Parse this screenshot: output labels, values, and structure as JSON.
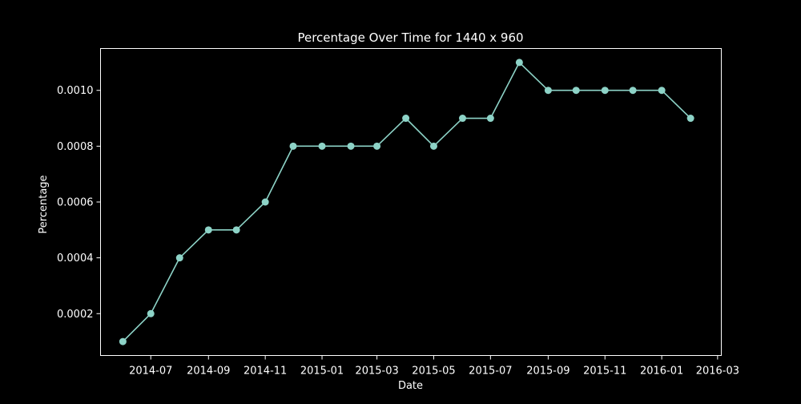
{
  "chart_data": {
    "type": "line",
    "title": "Percentage Over Time for 1440 x 960",
    "xlabel": "Date",
    "ylabel": "Percentage",
    "x_tick_labels": [
      "2014-07",
      "2014-09",
      "2014-11",
      "2015-01",
      "2015-03",
      "2015-05",
      "2015-07",
      "2015-09",
      "2015-11",
      "2016-01",
      "2016-03"
    ],
    "y_tick_labels": [
      "0.0002",
      "0.0004",
      "0.0006",
      "0.0008",
      "0.0010"
    ],
    "y_ticks": [
      0.0002,
      0.0004,
      0.0006,
      0.0008,
      0.001
    ],
    "x": [
      "2014-06-01",
      "2014-07-01",
      "2014-08-01",
      "2014-09-01",
      "2014-10-01",
      "2014-11-01",
      "2014-12-01",
      "2015-01-01",
      "2015-02-01",
      "2015-03-01",
      "2015-04-01",
      "2015-05-01",
      "2015-06-01",
      "2015-07-01",
      "2015-08-01",
      "2015-09-01",
      "2015-10-01",
      "2015-11-01",
      "2015-12-01",
      "2016-01-01",
      "2016-02-01"
    ],
    "values": [
      0.0001,
      0.0002,
      0.0004,
      0.0005,
      0.0005,
      0.0006,
      0.0008,
      0.0008,
      0.0008,
      0.0008,
      0.0009,
      0.0008,
      0.0009,
      0.0009,
      0.0011,
      0.001,
      0.001,
      0.001,
      0.001,
      0.001,
      0.0009
    ],
    "xlim": [
      "2014-05-08",
      "2016-03-05"
    ],
    "ylim": [
      5e-05,
      0.00115
    ],
    "grid": false,
    "colors": {
      "background": "#000000",
      "axes": "#ffffff",
      "text": "#ffffff",
      "line": "#8dd3c7"
    }
  }
}
